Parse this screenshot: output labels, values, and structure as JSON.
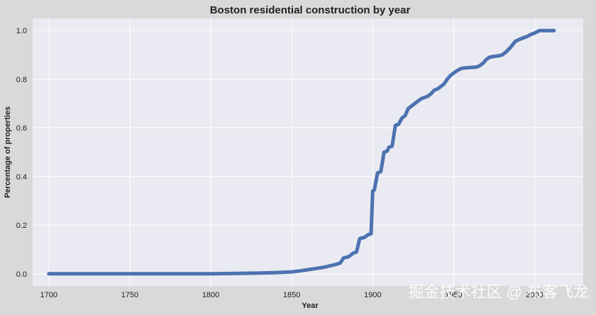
{
  "chart_data": {
    "type": "line",
    "title": "Boston residential construction by year",
    "xlabel": "Year",
    "ylabel": "Percentage of properties",
    "xlim": [
      1690,
      2030
    ],
    "ylim": [
      -0.05,
      1.05
    ],
    "x_ticks": [
      1700,
      1750,
      1800,
      1850,
      1900,
      1950,
      2000
    ],
    "y_ticks": [
      0.0,
      0.2,
      0.4,
      0.6,
      0.8,
      1.0
    ],
    "x_tick_labels": [
      "1700",
      "1750",
      "1800",
      "1850",
      "1900",
      "1950",
      "2000"
    ],
    "y_tick_labels": [
      "0.0",
      "0.2",
      "0.4",
      "0.6",
      "0.8",
      "1.0"
    ],
    "grid": true,
    "line_color": "#4c72b0",
    "background_color": "#eaeaf2",
    "series": [
      {
        "x": [
          1700,
          1760,
          1800,
          1820,
          1830,
          1840,
          1850,
          1855,
          1860,
          1865,
          1870,
          1875,
          1878,
          1880,
          1882,
          1885,
          1888,
          1890,
          1892,
          1895,
          1897,
          1899,
          1900,
          1901,
          1903,
          1905,
          1907,
          1909,
          1910,
          1912,
          1914,
          1916,
          1918,
          1920,
          1922,
          1924,
          1926,
          1928,
          1930,
          1932,
          1934,
          1936,
          1938,
          1940,
          1942,
          1944,
          1946,
          1948,
          1950,
          1952,
          1955,
          1958,
          1960,
          1962,
          1964,
          1966,
          1968,
          1970,
          1972,
          1974,
          1976,
          1978,
          1980,
          1982,
          1985,
          1988,
          1990,
          1993,
          1995,
          1998,
          2000,
          2003,
          2005,
          2007,
          2010,
          2012
        ],
        "y": [
          0.0,
          0.0,
          0.0,
          0.002,
          0.003,
          0.005,
          0.008,
          0.012,
          0.017,
          0.022,
          0.027,
          0.035,
          0.04,
          0.045,
          0.065,
          0.07,
          0.085,
          0.09,
          0.145,
          0.15,
          0.16,
          0.165,
          0.34,
          0.345,
          0.415,
          0.42,
          0.5,
          0.505,
          0.52,
          0.525,
          0.61,
          0.615,
          0.64,
          0.65,
          0.68,
          0.69,
          0.7,
          0.71,
          0.72,
          0.725,
          0.73,
          0.74,
          0.755,
          0.76,
          0.77,
          0.78,
          0.8,
          0.815,
          0.825,
          0.835,
          0.845,
          0.847,
          0.848,
          0.849,
          0.85,
          0.855,
          0.865,
          0.88,
          0.89,
          0.893,
          0.895,
          0.896,
          0.9,
          0.91,
          0.93,
          0.955,
          0.962,
          0.97,
          0.975,
          0.985,
          0.99,
          1.0,
          1.0,
          1.0,
          1.0,
          1.0
        ]
      }
    ]
  },
  "watermark": "掘金技术社区 @ 布客飞龙"
}
